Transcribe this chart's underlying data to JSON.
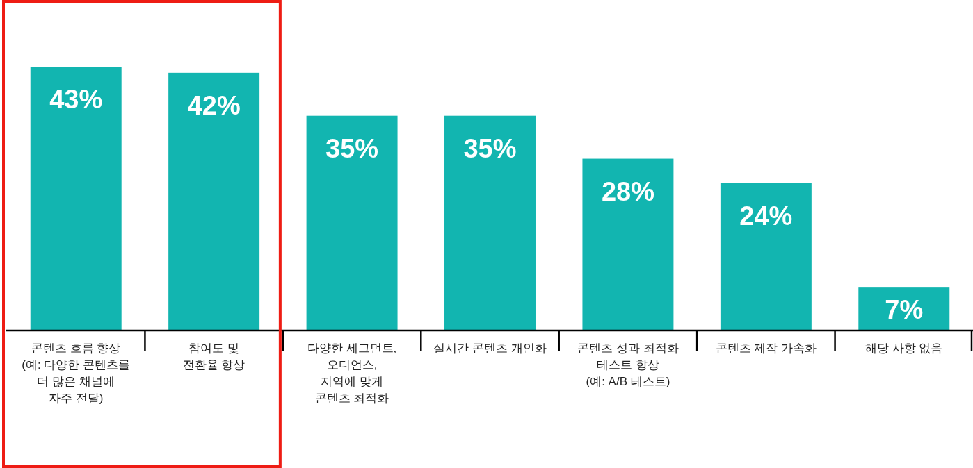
{
  "chart_data": {
    "type": "bar",
    "categories": [
      "콘텐츠 흐름 향상\n(예: 다양한 콘텐츠를\n더 많은 채널에\n자주 전달)",
      "참여도 및\n전환율 향상",
      "다양한 세그먼트,\n오디언스,\n지역에 맞게\n콘텐츠 최적화",
      "실시간 콘텐츠 개인화",
      "콘텐츠 성과 최적화\n테스트 향상\n(예: A/B 테스트)",
      "콘텐츠 제작 가속화",
      "해당 사항 없음"
    ],
    "values": [
      43,
      42,
      35,
      35,
      28,
      24,
      7
    ],
    "value_labels": [
      "43%",
      "42%",
      "35%",
      "35%",
      "28%",
      "24%",
      "7%"
    ],
    "color": "#12b5b0"
  }
}
